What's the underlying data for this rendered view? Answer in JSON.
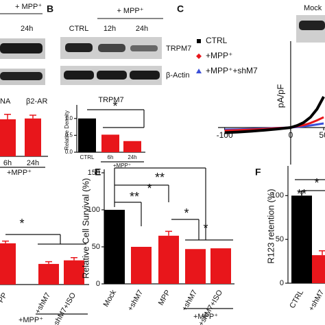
{
  "panels": {
    "b": "B",
    "c": "C",
    "e": "E",
    "f": "F"
  },
  "panel_a": {
    "treatment": "+ MPP⁺",
    "time": "24h",
    "labels": [
      "NA",
      "β2-AR"
    ]
  },
  "panel_b_blot": {
    "treatment": "+ MPP⁺",
    "lanes": [
      "CTRL",
      "12h",
      "24h"
    ],
    "proteins": [
      "TRPM7",
      "β-Actin"
    ]
  },
  "panel_c_blot": {
    "label": "Mock"
  },
  "chart_data": [
    {
      "type": "bar",
      "categories": [
        "6h",
        "24h"
      ],
      "group_label": "+MPP⁺",
      "values": [
        0.9,
        0.92
      ],
      "errors": [
        0.12,
        0.08
      ],
      "colors": [
        "#e8161b",
        "#e8161b"
      ],
      "ylim": [
        0,
        1.3
      ]
    },
    {
      "type": "bar",
      "categories": [
        "PP",
        "+shM7",
        "+shM7+ISO"
      ],
      "group_label": "+MPP⁺",
      "values": [
        0.92,
        0.46,
        0.54
      ],
      "errors": [
        0.05,
        0.05,
        0.06
      ],
      "colors": [
        "#e8161b",
        "#e8161b",
        "#e8161b"
      ],
      "ylim": [
        0,
        1.3
      ],
      "annotations": [
        "*"
      ]
    },
    {
      "type": "bar",
      "title": "TRPM7",
      "y_label": "Relative Density",
      "categories": [
        "CTRL",
        "6h",
        "24h"
      ],
      "group_label": "+MPP⁺",
      "values": [
        1.0,
        0.52,
        0.33
      ],
      "colors": [
        "#000000",
        "#e8161b",
        "#e8161b"
      ],
      "ylim": [
        0,
        1.3
      ],
      "yticks": [
        {
          "value": 0,
          "label": "0.0"
        },
        {
          "value": 0.5,
          "label": "0.5"
        },
        {
          "value": 1,
          "label": "1.0"
        }
      ],
      "annotations": [
        "*"
      ]
    },
    {
      "type": "line",
      "y_label": "pA/pF",
      "x": [
        -100,
        -80,
        -60,
        -40,
        -20,
        0,
        10,
        20,
        30,
        40,
        50
      ],
      "series": [
        {
          "name": "CTRL",
          "color": "#000000",
          "marker": "square",
          "values": [
            -2.5,
            -2.2,
            -1.8,
            -1.3,
            -0.7,
            0,
            1,
            2.5,
            5,
            9,
            15
          ]
        },
        {
          "name": "+MPP⁺",
          "color": "#e8161b",
          "marker": "diamond",
          "values": [
            -1.5,
            -1.3,
            -1,
            -0.7,
            -0.3,
            0,
            0.6,
            1.2,
            2.2,
            3.5,
            5
          ]
        },
        {
          "name": "+MPP⁺+shM7",
          "color": "#3b4fd8",
          "marker": "triangle",
          "values": [
            -1,
            -0.9,
            -0.7,
            -0.5,
            -0.2,
            0,
            0.3,
            0.6,
            1,
            1.5,
            2
          ]
        }
      ],
      "xlim": [
        -110,
        52
      ],
      "ylim": [
        -18,
        42
      ],
      "xticks": [
        -100,
        0,
        50
      ]
    },
    {
      "type": "bar",
      "y_label": "Relative Cell Survival (%)",
      "categories": [
        "Mock",
        "+shM7",
        "MPP",
        "+shM7",
        "+shM7+ISO"
      ],
      "group_label": "+MPP⁺",
      "values": [
        100,
        50,
        65,
        47,
        48
      ],
      "errors": [
        0,
        0,
        6,
        0,
        0
      ],
      "colors": [
        "#000000",
        "#e8161b",
        "#e8161b",
        "#e8161b",
        "#e8161b"
      ],
      "ylim": [
        0,
        150
      ],
      "yticks": [
        0,
        50,
        100,
        150
      ],
      "annotations": [
        "**",
        "*",
        "**",
        "*",
        "*"
      ]
    },
    {
      "type": "bar",
      "y_label": "R123 retention (%)",
      "categories": [
        "CTRL",
        "+shM7"
      ],
      "values": [
        100,
        32
      ],
      "errors": [
        5,
        5
      ],
      "colors": [
        "#000000",
        "#e8161b"
      ],
      "ylim": [
        0,
        130
      ],
      "yticks": [
        0,
        50,
        100
      ],
      "annotations": [
        "**",
        "*"
      ]
    }
  ]
}
